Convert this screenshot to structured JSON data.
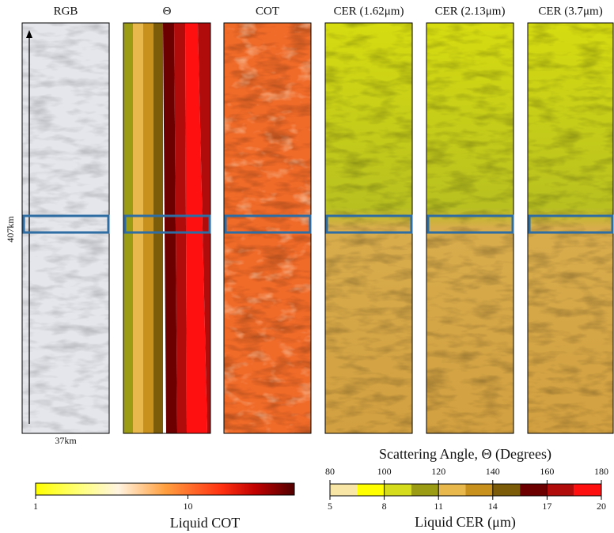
{
  "panel_titles": [
    "RGB",
    "Θ",
    "COT",
    "CER (1.62μm)",
    "CER (2.13μm)",
    "CER (3.7μm)"
  ],
  "scale": {
    "vertical": "407km",
    "horizontal": "37km"
  },
  "cot_colorbar": {
    "label": "Liquid COT",
    "ticks": [
      1,
      10
    ],
    "lim": [
      1,
      50
    ],
    "log": true
  },
  "cer_colorbar": {
    "title": "Scattering Angle, Θ (Degrees)",
    "angle_ticks": [
      80,
      100,
      120,
      140,
      160,
      180
    ],
    "angle_lim": [
      80,
      180
    ],
    "label": "Liquid CER (μm)",
    "cer_ticks": [
      5,
      8,
      11,
      14,
      17,
      20
    ],
    "cer_lim": [
      5,
      20
    ],
    "colors": [
      "#f7e6a6",
      "#ffff00",
      "#d4dc1c",
      "#9c9c14",
      "#e8b84c",
      "#c8901c",
      "#7c5c08",
      "#6c0000",
      "#b00c0c",
      "#ff1010"
    ]
  }
}
